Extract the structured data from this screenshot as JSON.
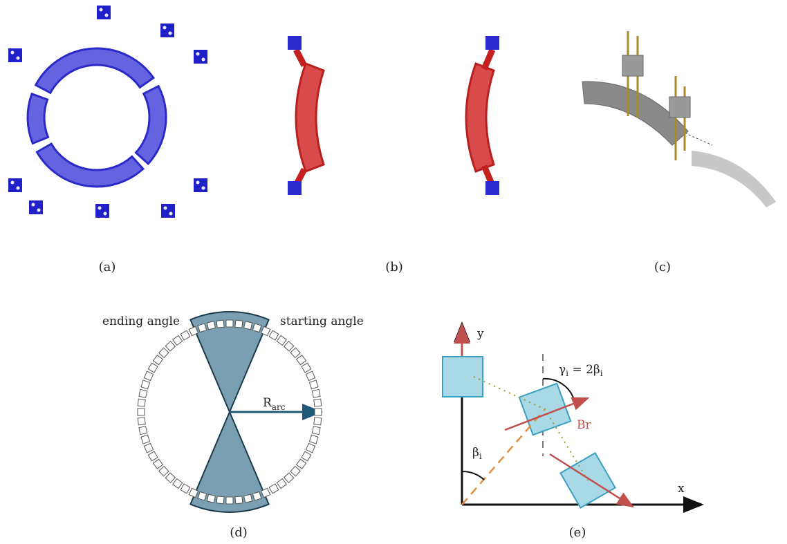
{
  "panels": {
    "a": {
      "label": "(a)"
    },
    "b": {
      "label": "(b)"
    },
    "c": {
      "label": "(c)"
    },
    "d": {
      "label": "(d)",
      "ending_angle": "ending angle",
      "starting_angle": "starting angle",
      "radius_symbol": "R",
      "radius_subscript": "arc"
    },
    "e": {
      "label": "(e)",
      "y_axis": "y",
      "x_axis": "x",
      "gamma_symbol": "γ",
      "gamma_subscript": "i",
      "gamma_rhs": " = 2β",
      "gamma_rhs_subscript": "i",
      "br": "Br",
      "beta_symbol": "β",
      "beta_subscript": "i"
    }
  }
}
